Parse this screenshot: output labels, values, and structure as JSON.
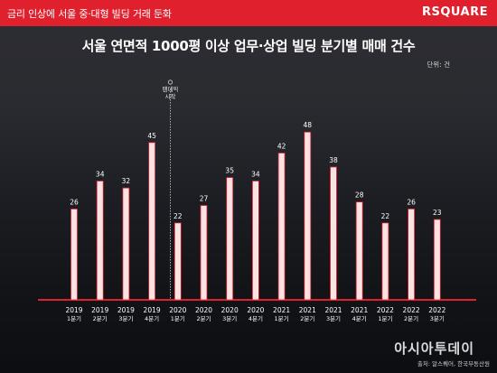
{
  "header": {
    "title": "금리 인상에 서울 중·대형 빌딩 거래 둔화",
    "brand": "RSQUARE",
    "brand_color": "#e0202d"
  },
  "chart_data": {
    "type": "bar",
    "title": "서울 연면적 1000평 이상 업무·상업 빌딩 분기별 매매 건수",
    "unit": "단위: 건",
    "categories": [
      [
        "2019",
        "1분기"
      ],
      [
        "2019",
        "2분기"
      ],
      [
        "2019",
        "3분기"
      ],
      [
        "2019",
        "4분기"
      ],
      [
        "2020",
        "1분기"
      ],
      [
        "2020",
        "2분기"
      ],
      [
        "2020",
        "3분기"
      ],
      [
        "2020",
        "4분기"
      ],
      [
        "2021",
        "1분기"
      ],
      [
        "2021",
        "2분기"
      ],
      [
        "2021",
        "3분기"
      ],
      [
        "2021",
        "4분기"
      ],
      [
        "2022",
        "1분기"
      ],
      [
        "2022",
        "2분기"
      ],
      [
        "2022",
        "3분기"
      ]
    ],
    "values": [
      26,
      34,
      32,
      45,
      22,
      27,
      35,
      34,
      42,
      48,
      38,
      28,
      22,
      26,
      23
    ],
    "ylim": [
      0,
      50
    ],
    "grid": false,
    "legend": "none",
    "bar_color": "#fbe3e3",
    "bar_stroke": "#e0202d",
    "baseline_color": "#e0202d",
    "annotation": {
      "line1": "팬데믹",
      "line2": "시작",
      "category_index": 4
    }
  },
  "footer": {
    "watermark": "아시아투데이",
    "source": "출처: 알스퀘어, 한국부동산원"
  }
}
